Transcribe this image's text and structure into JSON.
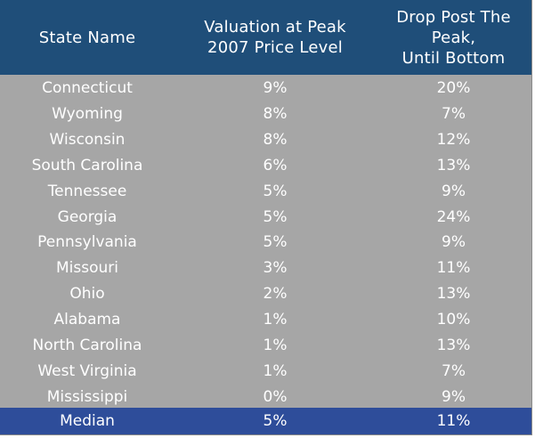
{
  "headers": {
    "state": "State Name",
    "valuation_line1": "Valuation at Peak",
    "valuation_line2": "2007 Price Level",
    "drop_line1": "Drop Post The",
    "drop_line2": "Peak,",
    "drop_line3": "Until Bottom"
  },
  "rows": [
    {
      "state": "Connecticut",
      "valuation": "9%",
      "drop": "20%"
    },
    {
      "state": "Wyoming",
      "valuation": "8%",
      "drop": "7%"
    },
    {
      "state": "Wisconsin",
      "valuation": "8%",
      "drop": "12%"
    },
    {
      "state": "South Carolina",
      "valuation": "6%",
      "drop": "13%"
    },
    {
      "state": "Tennessee",
      "valuation": "5%",
      "drop": "9%"
    },
    {
      "state": "Georgia",
      "valuation": "5%",
      "drop": "24%"
    },
    {
      "state": "Pennsylvania",
      "valuation": "5%",
      "drop": "9%"
    },
    {
      "state": "Missouri",
      "valuation": "3%",
      "drop": "11%"
    },
    {
      "state": "Ohio",
      "valuation": "2%",
      "drop": "13%"
    },
    {
      "state": "Alabama",
      "valuation": "1%",
      "drop": "10%"
    },
    {
      "state": "North Carolina",
      "valuation": "1%",
      "drop": "13%"
    },
    {
      "state": "West Virginia",
      "valuation": "1%",
      "drop": "7%"
    },
    {
      "state": "Mississippi",
      "valuation": "0%",
      "drop": "9%"
    }
  ],
  "median": {
    "state": "Median",
    "valuation": "5%",
    "drop": "11%"
  },
  "colors": {
    "header_bg": "#1f4e79",
    "body_bg": "#a6a6a6",
    "median_bg": "#2e4d9a",
    "text": "#ffffff"
  },
  "chart_data": {
    "type": "table",
    "columns": [
      "State Name",
      "Valuation at Peak 2007 Price Level",
      "Drop Post The Peak, Until Bottom"
    ],
    "rows": [
      [
        "Connecticut",
        "9%",
        "20%"
      ],
      [
        "Wyoming",
        "8%",
        "7%"
      ],
      [
        "Wisconsin",
        "8%",
        "12%"
      ],
      [
        "South Carolina",
        "6%",
        "13%"
      ],
      [
        "Tennessee",
        "5%",
        "9%"
      ],
      [
        "Georgia",
        "5%",
        "24%"
      ],
      [
        "Pennsylvania",
        "5%",
        "9%"
      ],
      [
        "Missouri",
        "3%",
        "11%"
      ],
      [
        "Ohio",
        "2%",
        "13%"
      ],
      [
        "Alabama",
        "1%",
        "10%"
      ],
      [
        "North Carolina",
        "1%",
        "13%"
      ],
      [
        "West Virginia",
        "1%",
        "7%"
      ],
      [
        "Mississippi",
        "0%",
        "9%"
      ],
      [
        "Median",
        "5%",
        "11%"
      ]
    ]
  }
}
